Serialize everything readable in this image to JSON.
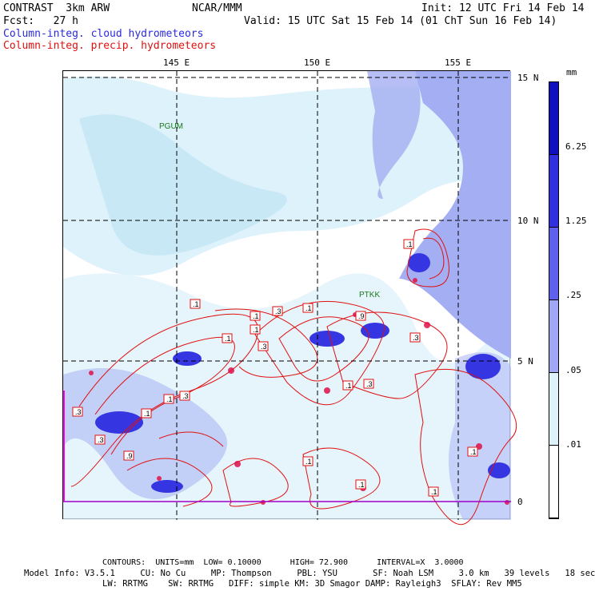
{
  "header": {
    "model": "CONTRAST  3km ARW",
    "org": "NCAR/MMM",
    "init": "Init: 12 UTC Fri 14 Feb 14",
    "fcst": "Fcst:   27 h",
    "valid": "Valid: 15 UTC Sat 15 Feb 14 (01 ChT Sun 16 Feb 14)",
    "legend_blue": "Column-integ. cloud hydrometeors",
    "legend_red": "Column-integ. precip. hydrometeors"
  },
  "axes": {
    "lon_labels": [
      "145 E",
      "150 E",
      "155 E"
    ],
    "lat_labels": [
      "15 N",
      "10 N",
      "5 N",
      "0"
    ]
  },
  "stations": [
    "PGUM",
    "PTKK"
  ],
  "contour_labels": [
    ".1",
    ".3",
    ".9"
  ],
  "colorbar": {
    "unit": "mm",
    "levels": [
      "6.25",
      "1.25",
      ".25",
      ".05",
      ".01"
    ],
    "colors": [
      "#1010c0",
      "#3030e0",
      "#6060ef",
      "#a0a8f5",
      "#ddf2fb",
      "#ffffff"
    ]
  },
  "footer": {
    "contours": "CONTOURS:  UNITS=mm  LOW= 0.10000      HIGH= 72.900      INTERVAL=X  3.0000",
    "info1": "Model Info: V3.5.1     CU: No Cu     MP: Thompson     PBL: YSU       SF: Noah LSM     3.0 km   39 levels   18 sec",
    "info2": "LW: RRTMG    SW: RRTMG   DIFF: simple KM: 3D Smagor DAMP: Rayleigh3  SFLAY: Rev MM5"
  }
}
